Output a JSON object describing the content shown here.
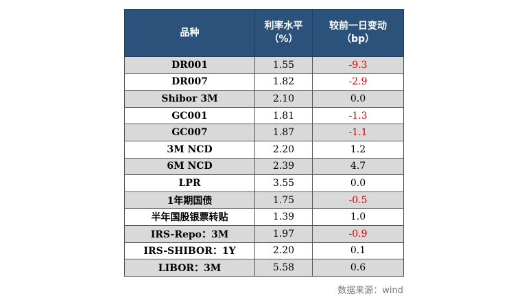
{
  "header": {
    "col1": "品种",
    "col2_line1": "利率水平",
    "col2_line2": "（%）",
    "col3_line1": "较前一日变动",
    "col3_line2": "（bp）"
  },
  "rows": [
    {
      "name": "DR001",
      "rate": "1.55",
      "change": "-9.3",
      "neg": true
    },
    {
      "name": "DR007",
      "rate": "1.82",
      "change": "-2.9",
      "neg": true
    },
    {
      "name": "Shibor 3M",
      "rate": "2.10",
      "change": "0.0",
      "neg": false
    },
    {
      "name": "GC001",
      "rate": "1.81",
      "change": "-1.3",
      "neg": true
    },
    {
      "name": "GC007",
      "rate": "1.87",
      "change": "-1.1",
      "neg": true
    },
    {
      "name": "3M NCD",
      "rate": "2.20",
      "change": "1.2",
      "neg": false
    },
    {
      "name": "6M NCD",
      "rate": "2.39",
      "change": "4.7",
      "neg": false
    },
    {
      "name": "LPR",
      "rate": "3.55",
      "change": "0.0",
      "neg": false
    },
    {
      "name": "1年期国债",
      "rate": "1.75",
      "change": "-0.5",
      "neg": true
    },
    {
      "name": "半年国股银票转贴",
      "rate": "1.39",
      "change": "1.0",
      "neg": false
    },
    {
      "name": "IRS-Repo：3M",
      "rate": "1.97",
      "change": "-0.9",
      "neg": true
    },
    {
      "name": "IRS-SHIBOR：1Y",
      "rate": "2.20",
      "change": "0.1",
      "neg": false
    },
    {
      "name": "LIBOR：3M",
      "rate": "5.58",
      "change": "0.6",
      "neg": false
    }
  ],
  "source": "数据来源：wind"
}
